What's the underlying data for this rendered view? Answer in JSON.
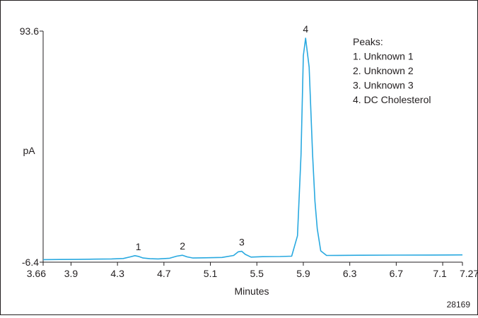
{
  "chart_data": {
    "type": "line",
    "xlabel": "Minutes",
    "ylabel": "pA",
    "xlim": [
      3.66,
      7.27
    ],
    "ylim": [
      -6.4,
      93.6
    ],
    "x_ticks": [
      "3.66",
      "3.9",
      "4.3",
      "4.7",
      "5.1",
      "5.5",
      "5.9",
      "6.3",
      "6.7",
      "7.1",
      "7.27"
    ],
    "y_ticks": [
      "93.6",
      "-6.4"
    ],
    "color": "#29a9e0",
    "series": [
      {
        "x": [
          3.66,
          3.8,
          3.95,
          4.1,
          4.25,
          4.35,
          4.41,
          4.45,
          4.48,
          4.52,
          4.58,
          4.65,
          4.75,
          4.81,
          4.86,
          4.9,
          4.95,
          5.05,
          5.2,
          5.3,
          5.34,
          5.37,
          5.4,
          5.45,
          5.55,
          5.7,
          5.8,
          5.85,
          5.88,
          5.9,
          5.92,
          5.95,
          5.98,
          6.0,
          6.02,
          6.05,
          6.1,
          6.2,
          6.4,
          6.7,
          7.0,
          7.27
        ],
        "y": [
          -5.3,
          -5.25,
          -5.2,
          -5.1,
          -5.0,
          -4.8,
          -4.1,
          -3.6,
          -3.9,
          -4.6,
          -4.9,
          -5.0,
          -4.7,
          -3.8,
          -3.4,
          -4.1,
          -4.6,
          -4.5,
          -4.35,
          -3.5,
          -1.9,
          -1.7,
          -3.0,
          -4.2,
          -4.0,
          -3.95,
          -3.8,
          5.0,
          40.0,
          83.0,
          90.5,
          78.0,
          40.0,
          20.0,
          8.0,
          -1.5,
          -3.5,
          -3.45,
          -3.4,
          -3.35,
          -3.3,
          -3.25
        ]
      }
    ],
    "annotations": [
      {
        "label": "1",
        "x": 4.48,
        "y": -3.6
      },
      {
        "label": "2",
        "x": 4.86,
        "y": -3.4
      },
      {
        "label": "3",
        "x": 5.37,
        "y": -1.7
      },
      {
        "label": "4",
        "x": 5.92,
        "y": 90.5
      }
    ],
    "legend": {
      "placement": "top-right",
      "title": "Peaks:",
      "items": [
        "1. Unknown 1",
        "2. Unknown 2",
        "3. Unknown 3",
        "4. DC Cholesterol"
      ]
    },
    "figure_code": "28169"
  }
}
